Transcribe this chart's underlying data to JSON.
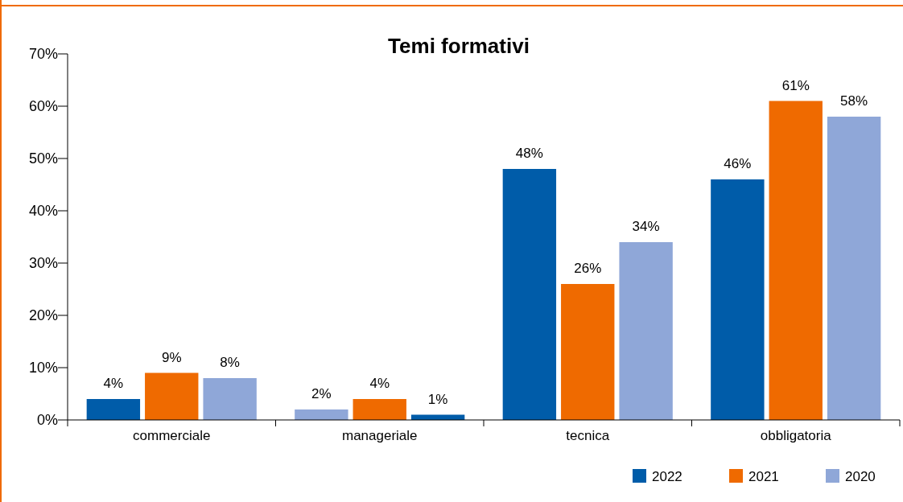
{
  "chart_data": {
    "type": "bar",
    "title": "Temi formativi",
    "categories": [
      "commerciale",
      "manageriale",
      "tecnica",
      "obbligatoria"
    ],
    "series": [
      {
        "name": "2022",
        "color": "#005ca9",
        "colors": [
          "#005ca9",
          "#8fa7d8",
          "#005ca9",
          "#005ca9"
        ],
        "values": [
          4,
          2,
          48,
          46
        ],
        "value_labels": [
          "4%",
          "2%",
          "48%",
          "46%"
        ]
      },
      {
        "name": "2021",
        "color": "#ef6a00",
        "values": [
          9,
          4,
          26,
          61
        ],
        "value_labels": [
          "9%",
          "4%",
          "26%",
          "61%"
        ]
      },
      {
        "name": "2020",
        "color": "#8fa7d8",
        "colors": [
          "#8fa7d8",
          "#005ca9",
          "#8fa7d8",
          "#8fa7d8"
        ],
        "values": [
          8,
          1,
          34,
          58
        ],
        "value_labels": [
          "8%",
          "1%",
          "34%",
          "58%"
        ]
      }
    ],
    "ylim": [
      0,
      70
    ],
    "yticks": [
      {
        "value": 0,
        "label": "0%"
      },
      {
        "value": 10,
        "label": "10%"
      },
      {
        "value": 20,
        "label": "20%"
      },
      {
        "value": 30,
        "label": "30%"
      },
      {
        "value": 40,
        "label": "40%"
      },
      {
        "value": 50,
        "label": "50%"
      },
      {
        "value": 60,
        "label": "60%"
      },
      {
        "value": 70,
        "label": "70%"
      }
    ],
    "legend": "bottom right",
    "grid": false
  }
}
